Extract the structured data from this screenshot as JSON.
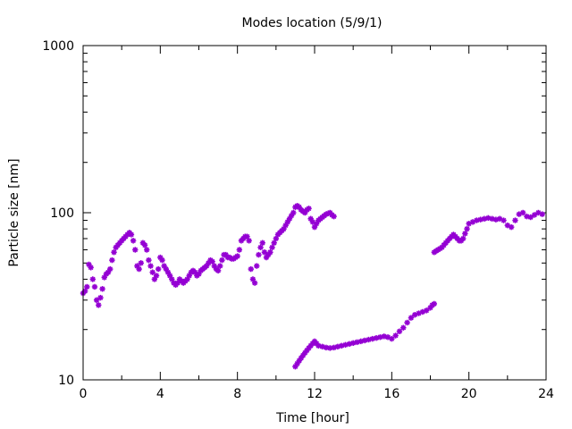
{
  "chart_data": {
    "type": "scatter",
    "title": "Modes location (5/9/1)",
    "xlabel": "Time [hour]",
    "ylabel": "Particle size [nm]",
    "xlim": [
      0,
      24
    ],
    "ylim": [
      10,
      1000
    ],
    "y_scale": "log",
    "x_ticks": [
      0,
      4,
      8,
      12,
      16,
      20,
      24
    ],
    "x_tick_labels": [
      "0",
      "4",
      "8",
      "12",
      "16",
      "20",
      "24"
    ],
    "y_ticks": [
      10,
      100,
      1000
    ],
    "y_tick_labels": [
      "10",
      "100",
      "1000"
    ],
    "grid": false,
    "legend": "none",
    "marker_color": "#9400D3",
    "marker": "asterisk",
    "series": [
      {
        "x": [
          0.0,
          0.1,
          0.2,
          0.3,
          0.4,
          0.5,
          0.6,
          0.7,
          0.8,
          0.9,
          1.0,
          1.1,
          1.2,
          1.3,
          1.4,
          1.5,
          1.6,
          1.7,
          1.8,
          1.9,
          2.0,
          2.1,
          2.2,
          2.3,
          2.4,
          2.5,
          2.6,
          2.7,
          2.8,
          2.9,
          3.0,
          3.1,
          3.2,
          3.3,
          3.4,
          3.5,
          3.6,
          3.7,
          3.8,
          3.9,
          4.0,
          4.1,
          4.2,
          4.3,
          4.4,
          4.5,
          4.6,
          4.7,
          4.8,
          4.9,
          5.0,
          5.1,
          5.2,
          5.3,
          5.4,
          5.5,
          5.6,
          5.7,
          5.8,
          5.9,
          6.0,
          6.1,
          6.2,
          6.3,
          6.4,
          6.5,
          6.6,
          6.7,
          6.8,
          6.9,
          7.0,
          7.1,
          7.2,
          7.3,
          7.4,
          7.5,
          7.6,
          7.7,
          7.8,
          7.9,
          8.0,
          8.1,
          8.2,
          8.3,
          8.4,
          8.5,
          8.6,
          8.7,
          8.8,
          8.9,
          9.0,
          9.1,
          9.2,
          9.3,
          9.4,
          9.5,
          9.6,
          9.7,
          9.8,
          9.9,
          10.0,
          10.1,
          10.2,
          10.3,
          10.4,
          10.5,
          10.6,
          10.7,
          10.8,
          10.9,
          11.0,
          11.1,
          11.2,
          11.3,
          11.4,
          11.5,
          11.6,
          11.7,
          11.8,
          11.9,
          12.0,
          12.1,
          12.2,
          12.3,
          12.4,
          12.5,
          12.6,
          12.7,
          12.8,
          12.9,
          13.0
        ],
        "y": [
          33,
          34,
          36,
          49,
          47,
          40,
          36,
          30,
          28,
          31,
          35,
          41,
          43,
          44,
          46,
          52,
          58,
          62,
          64,
          66,
          68,
          70,
          72,
          74,
          76,
          74,
          68,
          60,
          48,
          46,
          50,
          66,
          64,
          60,
          52,
          48,
          44,
          40,
          42,
          46,
          54,
          52,
          48,
          46,
          44,
          42,
          40,
          38,
          37,
          38,
          40,
          39,
          38,
          39,
          40,
          42,
          44,
          45,
          44,
          42,
          43,
          45,
          46,
          47,
          48,
          50,
          52,
          51,
          48,
          46,
          45,
          48,
          52,
          56,
          56,
          54,
          54,
          53,
          53,
          54,
          55,
          60,
          68,
          70,
          72,
          72,
          68,
          46,
          40,
          38,
          48,
          56,
          62,
          66,
          58,
          54,
          56,
          58,
          62,
          66,
          70,
          74,
          76,
          78,
          80,
          84,
          88,
          92,
          96,
          100,
          108,
          110,
          108,
          104,
          102,
          100,
          104,
          106,
          92,
          88,
          82,
          86,
          90,
          92,
          94,
          96,
          98,
          99,
          100,
          97,
          95
        ],
        "x_fix": true
      },
      {
        "x": [
          11.0,
          11.1,
          11.2,
          11.3,
          11.4,
          11.5,
          11.6,
          11.7,
          11.8,
          11.9,
          12.0,
          12.1,
          12.2,
          12.4,
          12.6,
          12.8,
          13.0,
          13.2,
          13.4,
          13.6,
          13.8,
          14.0,
          14.2,
          14.4,
          14.6,
          14.8,
          15.0,
          15.2,
          15.4,
          15.6,
          15.8,
          16.0,
          16.2,
          16.4,
          16.6,
          16.8,
          17.0,
          17.2,
          17.4,
          17.6,
          17.8,
          18.0,
          18.1,
          18.2
        ],
        "y": [
          12.0,
          12.5,
          13.0,
          13.5,
          14.0,
          14.5,
          15.0,
          15.5,
          16.0,
          16.5,
          17.0,
          16.5,
          16.0,
          15.8,
          15.6,
          15.5,
          15.6,
          15.8,
          16.0,
          16.2,
          16.4,
          16.6,
          16.8,
          17.0,
          17.2,
          17.4,
          17.6,
          17.8,
          18.0,
          18.2,
          18.0,
          17.6,
          18.4,
          19.5,
          20.5,
          22.0,
          23.5,
          24.5,
          25.0,
          25.5,
          26.0,
          27.0,
          28.0,
          28.5
        ]
      },
      {
        "x": [
          18.2,
          18.3,
          18.4,
          18.5,
          18.6,
          18.7,
          18.8,
          18.9,
          19.0,
          19.1,
          19.2,
          19.3,
          19.4,
          19.5,
          19.6,
          19.7,
          19.8,
          19.9,
          20.0,
          20.2,
          20.4,
          20.6,
          20.8,
          21.0,
          21.2,
          21.4,
          21.6,
          21.8,
          22.0,
          22.2,
          22.4,
          22.6,
          22.8,
          23.0,
          23.2,
          23.4,
          23.6,
          23.8
        ],
        "y": [
          58,
          59,
          60,
          61,
          62,
          64,
          66,
          68,
          70,
          72,
          74,
          72,
          70,
          68,
          68,
          70,
          75,
          80,
          86,
          88,
          90,
          91,
          92,
          93,
          92,
          91,
          92,
          90,
          84,
          82,
          90,
          98,
          100,
          95,
          94,
          97,
          100,
          98
        ]
      }
    ]
  }
}
